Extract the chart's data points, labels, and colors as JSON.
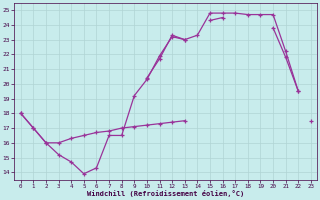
{
  "xlabel": "Windchill (Refroidissement éolien,°C)",
  "background_color": "#c8ecec",
  "grid_color": "#b0d4d4",
  "line_color": "#993399",
  "xlim": [
    -0.5,
    23.5
  ],
  "ylim": [
    13.5,
    25.5
  ],
  "yticks": [
    14,
    15,
    16,
    17,
    18,
    19,
    20,
    21,
    22,
    23,
    24,
    25
  ],
  "xticks": [
    0,
    1,
    2,
    3,
    4,
    5,
    6,
    7,
    8,
    9,
    10,
    11,
    12,
    13,
    14,
    15,
    16,
    17,
    18,
    19,
    20,
    21,
    22,
    23
  ],
  "line1_x": [
    0,
    1,
    2,
    3,
    4,
    5,
    6,
    7,
    8,
    9,
    10,
    11,
    12,
    13,
    14,
    15,
    16,
    17,
    18,
    19,
    20,
    21,
    22,
    23
  ],
  "line1_y": [
    18.0,
    17.0,
    16.0,
    15.2,
    14.7,
    13.9,
    14.3,
    16.5,
    16.5,
    19.2,
    20.3,
    21.9,
    23.2,
    23.0,
    23.3,
    24.8,
    24.8,
    24.8,
    24.7,
    24.7,
    24.7,
    22.2,
    19.5,
    null
  ],
  "line2_x": [
    0,
    1,
    2,
    3,
    4,
    5,
    6,
    7,
    8,
    9,
    10,
    11,
    12,
    13,
    14,
    15,
    16,
    17,
    18,
    19,
    20,
    21,
    22,
    23
  ],
  "line2_y": [
    null,
    null,
    null,
    null,
    null,
    null,
    null,
    null,
    null,
    null,
    20.4,
    21.7,
    23.3,
    23.0,
    null,
    24.3,
    24.5,
    null,
    null,
    null,
    23.8,
    21.8,
    19.5,
    null
  ],
  "line3_x": [
    0,
    1,
    2,
    3,
    4,
    5,
    6,
    7,
    8,
    9,
    10,
    11,
    12,
    13,
    14,
    15,
    16,
    17,
    18,
    19,
    20,
    21,
    22,
    23
  ],
  "line3_y": [
    18.0,
    17.0,
    16.0,
    16.0,
    16.3,
    16.5,
    16.7,
    16.8,
    17.0,
    17.1,
    17.2,
    17.3,
    17.4,
    17.5,
    null,
    null,
    null,
    null,
    null,
    null,
    null,
    null,
    null,
    17.5
  ]
}
